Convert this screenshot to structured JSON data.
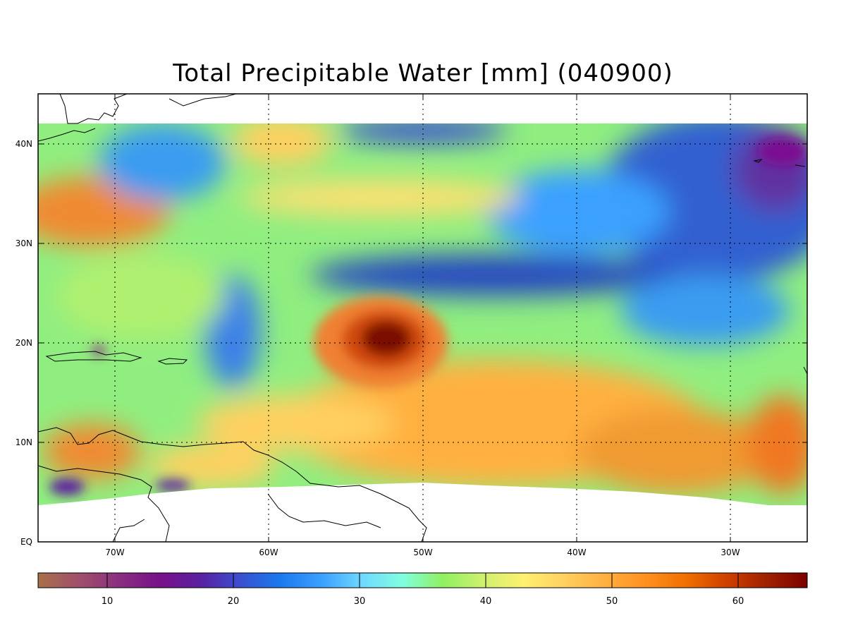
{
  "title": "Total Precipitable Water [mm]  (040900)",
  "lon_labels": [
    "70W",
    "60W",
    "50W",
    "40W",
    "30W"
  ],
  "lat_labels": [
    "EQ",
    "10N",
    "20N",
    "30N",
    "40N"
  ],
  "colorbar": {
    "tick_labels": [
      "10",
      "20",
      "30",
      "40",
      "50",
      "60"
    ],
    "colors": [
      "#a8704a",
      "#a0506a",
      "#8a2f80",
      "#78108a",
      "#5a20a0",
      "#3a50d0",
      "#1a7aee",
      "#3aa0ff",
      "#70d8ff",
      "#80ffe0",
      "#90f060",
      "#d0f070",
      "#fff070",
      "#ffd060",
      "#ffb040",
      "#ff9020",
      "#f07000",
      "#d04000",
      "#a02000",
      "#7a0000"
    ]
  },
  "colors": {
    "frame": "#000000",
    "grid": "#000000",
    "coastline": "#000000"
  }
}
